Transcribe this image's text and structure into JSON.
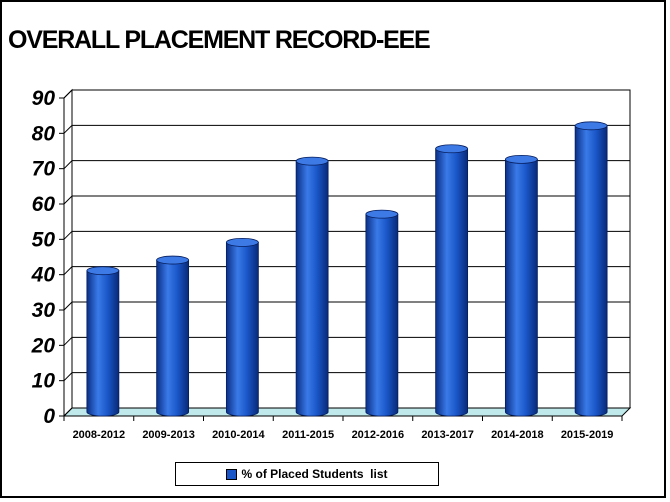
{
  "chart_data": {
    "type": "bar",
    "title": "OVERALL PLACEMENT RECORD-EEE",
    "categories": [
      "2008-2012",
      "2009-2013",
      "2010-2014",
      "2011-2015",
      "2012-2016",
      "2013-2017",
      "2014-2018",
      "2015-2019"
    ],
    "series": [
      {
        "name": "% of Placed Students  list",
        "values": [
          40,
          43,
          48,
          71,
          56,
          74.5,
          71.5,
          81
        ],
        "color": "#1a56c8"
      }
    ],
    "yticks": [
      0,
      10,
      20,
      30,
      40,
      50,
      60,
      70,
      80,
      90
    ],
    "ylim": [
      0,
      90
    ],
    "grid": true,
    "legend_position": "bottom"
  }
}
